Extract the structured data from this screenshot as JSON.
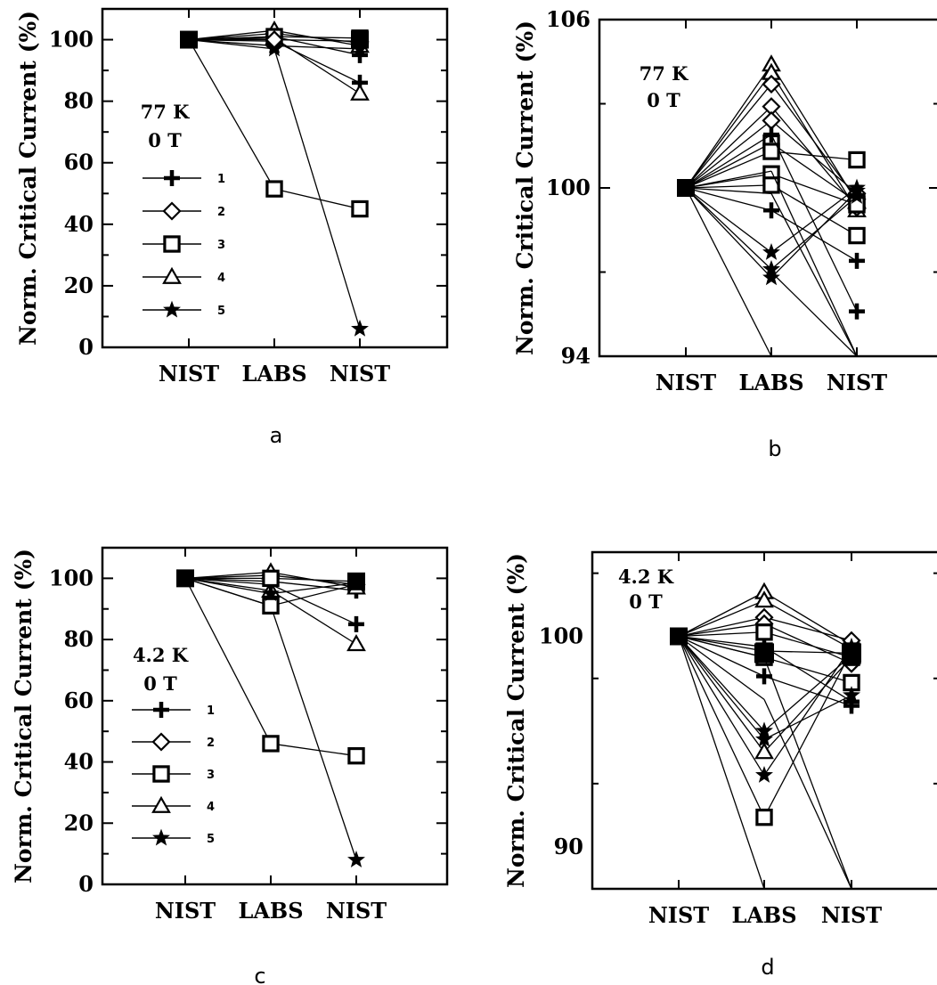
{
  "chart_data": [
    {
      "type": "line",
      "panel_label": "a",
      "ylabel": "Norm. Critical Current (%)",
      "categories": [
        "NIST",
        "LABS",
        "NIST"
      ],
      "ylim": [
        0,
        110
      ],
      "yticks": [
        0,
        20,
        40,
        60,
        80,
        100
      ],
      "annotation": [
        "77 K",
        "0 T"
      ],
      "legend": [
        {
          "label": "1",
          "marker": "plus"
        },
        {
          "label": "2",
          "marker": "diamond"
        },
        {
          "label": "3",
          "marker": "square"
        },
        {
          "label": "4",
          "marker": "triangle"
        },
        {
          "label": "5",
          "marker": "star"
        }
      ],
      "series": [
        {
          "marker": "square",
          "values": [
            100,
            51.5,
            45
          ]
        },
        {
          "marker": "star",
          "values": [
            100,
            97,
            6
          ]
        },
        {
          "marker": "plus",
          "values": [
            100,
            99.5,
            86
          ]
        },
        {
          "marker": "triangle",
          "values": [
            100,
            100.5,
            82.5
          ]
        },
        {
          "marker": "plus",
          "values": [
            100,
            101,
            95
          ]
        },
        {
          "marker": "diamond",
          "values": [
            100,
            102,
            99
          ]
        },
        {
          "marker": "triangle",
          "values": [
            100,
            103,
            98
          ]
        },
        {
          "marker": "square",
          "values": [
            100,
            101,
            100.5
          ]
        },
        {
          "marker": "star",
          "values": [
            100,
            98,
            97
          ]
        },
        {
          "marker": "diamond",
          "values": [
            100,
            100,
            99.5
          ]
        }
      ]
    },
    {
      "type": "line",
      "panel_label": "b",
      "ylabel": "Norm. Critical Current (%)",
      "categories": [
        "NIST",
        "LABS",
        "NIST"
      ],
      "ylim": [
        94,
        106
      ],
      "yticks": [
        94,
        100,
        106
      ],
      "annotation": [
        "77 K",
        "0 T"
      ],
      "series": [
        {
          "marker": "triangle",
          "values": [
            100,
            104.4,
            99.5
          ]
        },
        {
          "marker": "triangle",
          "values": [
            100,
            104.1,
            99.2
          ]
        },
        {
          "marker": "diamond",
          "values": [
            100,
            103.7,
            99.6
          ]
        },
        {
          "marker": "diamond",
          "values": [
            100,
            102.9,
            99.3
          ]
        },
        {
          "marker": "diamond",
          "values": [
            100,
            102.4,
            99.8
          ]
        },
        {
          "marker": "square",
          "values": [
            100,
            101.6,
            99.5
          ]
        },
        {
          "marker": "square",
          "values": [
            100,
            101.3,
            101
          ]
        },
        {
          "marker": "square",
          "values": [
            100,
            100.5,
            99.4
          ]
        },
        {
          "marker": "square",
          "values": [
            100,
            100.1,
            98.3
          ]
        },
        {
          "marker": "plus",
          "values": [
            100,
            99.2,
            97.4
          ]
        },
        {
          "marker": "plus",
          "values": [
            100,
            101.9,
            95.6
          ]
        },
        {
          "marker": "star",
          "values": [
            100,
            97.7,
            100
          ]
        },
        {
          "marker": "star",
          "values": [
            100,
            97.1,
            99.7
          ]
        },
        {
          "marker": "star",
          "values": [
            100,
            96.8,
            99.9
          ]
        },
        {
          "marker": "none",
          "values": [
            100,
            100.6,
            94
          ]
        },
        {
          "marker": "none",
          "values": [
            100,
            99.8,
            94
          ]
        },
        {
          "marker": "none",
          "values": [
            100,
            94,
            null
          ]
        },
        {
          "marker": "none",
          "values": [
            null,
            97,
            94
          ]
        }
      ]
    },
    {
      "type": "line",
      "panel_label": "c",
      "ylabel": "Norm. Critical Current (%)",
      "categories": [
        "NIST",
        "LABS",
        "NIST"
      ],
      "ylim": [
        0,
        110
      ],
      "yticks": [
        0,
        20,
        40,
        60,
        80,
        100
      ],
      "annotation": [
        "4.2 K",
        "0 T"
      ],
      "legend": [
        {
          "label": "1",
          "marker": "plus"
        },
        {
          "label": "2",
          "marker": "diamond"
        },
        {
          "label": "3",
          "marker": "square"
        },
        {
          "label": "4",
          "marker": "triangle"
        },
        {
          "label": "5",
          "marker": "star"
        }
      ],
      "series": [
        {
          "marker": "square",
          "values": [
            100,
            46,
            42
          ]
        },
        {
          "marker": "star",
          "values": [
            100,
            91,
            8
          ]
        },
        {
          "marker": "square",
          "values": [
            100,
            91,
            98
          ]
        },
        {
          "marker": "plus",
          "values": [
            100,
            98,
            85
          ]
        },
        {
          "marker": "triangle",
          "values": [
            100,
            96,
            78.5
          ]
        },
        {
          "marker": "plus",
          "values": [
            100,
            99,
            96
          ]
        },
        {
          "marker": "diamond",
          "values": [
            100,
            101,
            98
          ]
        },
        {
          "marker": "triangle",
          "values": [
            100,
            102,
            97
          ]
        },
        {
          "marker": "square",
          "values": [
            100,
            100,
            99
          ]
        },
        {
          "marker": "star",
          "values": [
            100,
            95,
            98.5
          ]
        }
      ]
    },
    {
      "type": "line",
      "panel_label": "d",
      "ylabel": "Norm. Critical Current (%)",
      "categories": [
        "NIST",
        "LABS",
        "NIST"
      ],
      "ylim": [
        88,
        104
      ],
      "yticks": [
        90,
        100
      ],
      "annotation": [
        "4.2 K",
        "0 T"
      ],
      "series": [
        {
          "marker": "triangle",
          "values": [
            100,
            102.1,
            99.6
          ]
        },
        {
          "marker": "triangle",
          "values": [
            100,
            101.7,
            99.4
          ]
        },
        {
          "marker": "diamond",
          "values": [
            100,
            100.9,
            99.8
          ]
        },
        {
          "marker": "diamond",
          "values": [
            100,
            100.6,
            98.7
          ]
        },
        {
          "marker": "square",
          "values": [
            100,
            100.2,
            99.0
          ]
        },
        {
          "marker": "square",
          "values": [
            100,
            99.3,
            99.2
          ]
        },
        {
          "marker": "square",
          "values": [
            100,
            99.0,
            97.8
          ]
        },
        {
          "marker": "square",
          "values": [
            100,
            91.4,
            99.3
          ]
        },
        {
          "marker": "plus",
          "values": [
            100,
            98.1,
            96.7
          ]
        },
        {
          "marker": "plus",
          "values": [
            100,
            99.5,
            96.9
          ]
        },
        {
          "marker": "star",
          "values": [
            100,
            95.5,
            99.1
          ]
        },
        {
          "marker": "star",
          "values": [
            100,
            95.1,
            97.2
          ]
        },
        {
          "marker": "star",
          "values": [
            100,
            93.4,
            99.5
          ]
        },
        {
          "marker": "triangle",
          "values": [
            100,
            94.5,
            99.0
          ]
        },
        {
          "marker": "none",
          "values": [
            100,
            97.0,
            88
          ]
        },
        {
          "marker": "none",
          "values": [
            100,
            99.0,
            88
          ]
        },
        {
          "marker": "none",
          "values": [
            100,
            88,
            null
          ]
        },
        {
          "marker": "none",
          "values": [
            null,
            88,
            88
          ]
        }
      ]
    }
  ]
}
